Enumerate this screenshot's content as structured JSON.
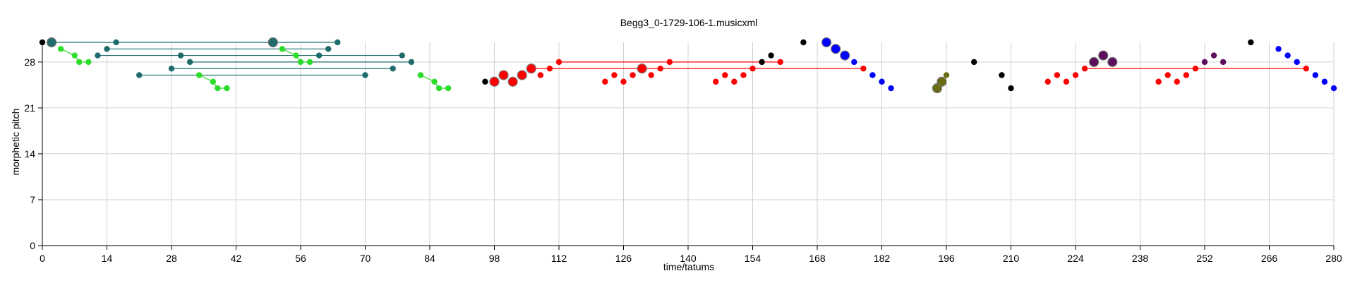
{
  "chart_data": {
    "type": "scatter",
    "title": "Begg3_0-1729-106-1.musicxml",
    "xlabel": "time/tatums",
    "ylabel": "morphetic pitch",
    "xlim": [
      0,
      280
    ],
    "ylim": [
      0,
      31
    ],
    "xticks": [
      0,
      14,
      28,
      42,
      56,
      70,
      84,
      98,
      112,
      126,
      140,
      154,
      168,
      182,
      196,
      210,
      224,
      238,
      252,
      266,
      280
    ],
    "yticks": [
      0,
      7,
      14,
      21,
      28
    ],
    "grid": true,
    "colors": {
      "black": "#000000",
      "teal": "#1f6b6b",
      "lime": "#2bdc2b",
      "red": "#ff0000",
      "blue": "#0000ff",
      "olive": "#6b6b14",
      "purple": "#5c0f5c",
      "gridline": "#d0d0d0"
    },
    "black_points": [
      [
        0,
        31
      ],
      [
        96,
        25
      ],
      [
        156,
        28
      ],
      [
        158,
        29
      ],
      [
        165,
        31
      ],
      [
        202,
        28
      ],
      [
        208,
        26
      ],
      [
        210,
        24
      ],
      [
        262,
        31
      ]
    ],
    "teal_points": [
      [
        2,
        31,
        "big"
      ],
      [
        12,
        29
      ],
      [
        14,
        30
      ],
      [
        16,
        31
      ],
      [
        21,
        26
      ],
      [
        28,
        27
      ],
      [
        30,
        29
      ],
      [
        32,
        28
      ],
      [
        50,
        31,
        "big"
      ],
      [
        60,
        29
      ],
      [
        62,
        30
      ],
      [
        64,
        31
      ],
      [
        70,
        26
      ],
      [
        76,
        27
      ],
      [
        78,
        29
      ],
      [
        80,
        28
      ]
    ],
    "teal_lines": [
      [
        [
          2,
          31
        ],
        [
          16,
          31
        ],
        [
          50,
          31
        ],
        [
          64,
          31
        ]
      ],
      [
        [
          12,
          29
        ],
        [
          30,
          29
        ],
        [
          60,
          29
        ],
        [
          78,
          29
        ]
      ],
      [
        [
          14,
          30
        ],
        [
          62,
          30
        ]
      ],
      [
        [
          21,
          26
        ],
        [
          70,
          26
        ]
      ],
      [
        [
          28,
          27
        ],
        [
          76,
          27
        ]
      ],
      [
        [
          32,
          28
        ],
        [
          80,
          28
        ]
      ]
    ],
    "lime_points": [
      [
        4,
        30
      ],
      [
        7,
        29
      ],
      [
        8,
        28
      ],
      [
        10,
        28
      ],
      [
        34,
        26
      ],
      [
        37,
        25
      ],
      [
        38,
        24
      ],
      [
        40,
        24
      ],
      [
        52,
        30
      ],
      [
        55,
        29
      ],
      [
        56,
        28
      ],
      [
        58,
        28
      ],
      [
        82,
        26
      ],
      [
        85,
        25
      ],
      [
        86,
        24
      ],
      [
        88,
        24
      ]
    ],
    "lime_lines": [
      [
        [
          4,
          30
        ],
        [
          7,
          29
        ],
        [
          8,
          28
        ],
        [
          10,
          28
        ]
      ],
      [
        [
          34,
          26
        ],
        [
          37,
          25
        ],
        [
          38,
          24
        ],
        [
          40,
          24
        ]
      ],
      [
        [
          52,
          30
        ],
        [
          55,
          29
        ],
        [
          56,
          28
        ],
        [
          58,
          28
        ]
      ],
      [
        [
          82,
          26
        ],
        [
          85,
          25
        ],
        [
          86,
          24
        ],
        [
          88,
          24
        ]
      ]
    ],
    "red_points": [
      [
        98,
        25
      ],
      [
        100,
        26
      ],
      [
        102,
        25
      ],
      [
        104,
        26
      ],
      [
        106,
        27
      ],
      [
        108,
        26
      ],
      [
        110,
        27
      ],
      [
        112,
        28
      ],
      [
        122,
        25
      ],
      [
        124,
        26
      ],
      [
        126,
        25
      ],
      [
        128,
        26
      ],
      [
        130,
        27
      ],
      [
        132,
        26
      ],
      [
        134,
        27
      ],
      [
        136,
        28
      ],
      [
        146,
        25
      ],
      [
        148,
        26
      ],
      [
        150,
        25
      ],
      [
        152,
        26
      ],
      [
        154,
        27
      ],
      [
        160,
        28
      ],
      [
        178,
        27
      ],
      [
        218,
        25
      ],
      [
        220,
        26
      ],
      [
        222,
        25
      ],
      [
        224,
        26
      ],
      [
        226,
        27
      ],
      [
        242,
        25
      ],
      [
        244,
        26
      ],
      [
        246,
        25
      ],
      [
        248,
        26
      ],
      [
        250,
        27
      ],
      [
        274,
        27
      ]
    ],
    "red_lines": [
      [
        [
          106,
          27
        ],
        [
          178,
          27
        ]
      ],
      [
        [
          112,
          28
        ],
        [
          160,
          28
        ]
      ],
      [
        [
          226,
          27
        ],
        [
          274,
          27
        ]
      ]
    ],
    "blue_points": [
      [
        170,
        31
      ],
      [
        172,
        30
      ],
      [
        174,
        29
      ],
      [
        176,
        28
      ],
      [
        180,
        26
      ],
      [
        182,
        25
      ],
      [
        184,
        24
      ],
      [
        268,
        30
      ],
      [
        270,
        29
      ],
      [
        272,
        28
      ],
      [
        276,
        26
      ],
      [
        278,
        25
      ],
      [
        280,
        24
      ]
    ],
    "olive_points": [
      [
        194,
        24
      ],
      [
        195,
        25
      ],
      [
        196,
        26
      ]
    ],
    "purple_points": [
      [
        228,
        28
      ],
      [
        230,
        29
      ],
      [
        232,
        28
      ],
      [
        252,
        28
      ],
      [
        254,
        29
      ],
      [
        256,
        28
      ]
    ],
    "big_points": [
      [
        98,
        25
      ],
      [
        100,
        26
      ],
      [
        102,
        25
      ],
      [
        104,
        26
      ],
      [
        106,
        27
      ],
      [
        130,
        27
      ],
      [
        170,
        31
      ],
      [
        172,
        30
      ],
      [
        174,
        29
      ],
      [
        194,
        24
      ],
      [
        195,
        25
      ],
      [
        228,
        28
      ],
      [
        230,
        29
      ],
      [
        232,
        28
      ]
    ]
  }
}
